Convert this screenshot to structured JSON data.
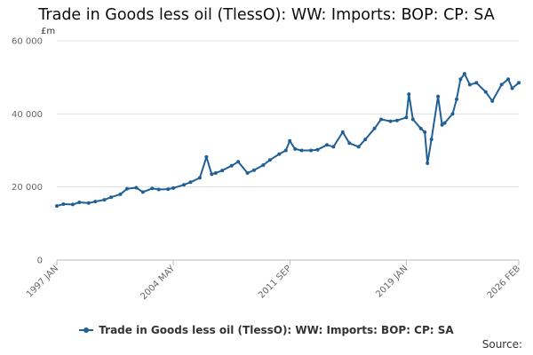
{
  "chart_data": {
    "type": "line",
    "title": "Trade in Goods less oil (TlessO): WW: Imports: BOP: CP: SA",
    "unit_label": "£m",
    "source_label": "Source:",
    "ylim": [
      0,
      60000
    ],
    "y_ticks": [
      0,
      20000,
      40000,
      60000
    ],
    "y_tick_labels": [
      "0",
      "20 000",
      "40 000",
      "60 000"
    ],
    "x_tick_labels": [
      "1997 JAN",
      "2004 MAY",
      "2011 SEP",
      "2019 JAN",
      "2026 FEB"
    ],
    "x_range": [
      "1997-01",
      "2026-02"
    ],
    "grid": true,
    "legend_position": "bottom",
    "colors": {
      "series": "#206095",
      "grid": "#e0e0e0",
      "axis": "#bbbbbb"
    },
    "series": [
      {
        "name": "Trade in Goods less oil (TlessO): WW: Imports: BOP: CP: SA",
        "points": [
          [
            "1997-01",
            14800
          ],
          [
            "1997-06",
            15300
          ],
          [
            "1998-01",
            15200
          ],
          [
            "1998-06",
            15800
          ],
          [
            "1999-01",
            15600
          ],
          [
            "1999-06",
            16000
          ],
          [
            "2000-01",
            16500
          ],
          [
            "2000-06",
            17200
          ],
          [
            "2001-01",
            18000
          ],
          [
            "2001-06",
            19500
          ],
          [
            "2002-01",
            19800
          ],
          [
            "2002-06",
            18600
          ],
          [
            "2003-01",
            19600
          ],
          [
            "2003-06",
            19300
          ],
          [
            "2004-01",
            19400
          ],
          [
            "2004-05",
            19700
          ],
          [
            "2005-01",
            20600
          ],
          [
            "2005-06",
            21300
          ],
          [
            "2006-01",
            22500
          ],
          [
            "2006-06",
            28200
          ],
          [
            "2006-10",
            23500
          ],
          [
            "2007-01",
            23800
          ],
          [
            "2007-06",
            24500
          ],
          [
            "2008-01",
            25800
          ],
          [
            "2008-06",
            26900
          ],
          [
            "2009-01",
            23800
          ],
          [
            "2009-06",
            24600
          ],
          [
            "2010-01",
            26000
          ],
          [
            "2010-06",
            27400
          ],
          [
            "2011-01",
            29000
          ],
          [
            "2011-06",
            30000
          ],
          [
            "2011-09",
            32600
          ],
          [
            "2012-01",
            30400
          ],
          [
            "2012-06",
            30000
          ],
          [
            "2013-01",
            30000
          ],
          [
            "2013-06",
            30200
          ],
          [
            "2014-01",
            31500
          ],
          [
            "2014-06",
            31000
          ],
          [
            "2015-01",
            35000
          ],
          [
            "2015-06",
            32000
          ],
          [
            "2016-01",
            31000
          ],
          [
            "2016-06",
            33000
          ],
          [
            "2017-01",
            36000
          ],
          [
            "2017-06",
            38500
          ],
          [
            "2018-01",
            38000
          ],
          [
            "2018-06",
            38200
          ],
          [
            "2019-01",
            39000
          ],
          [
            "2019-03",
            45400
          ],
          [
            "2019-06",
            38500
          ],
          [
            "2019-12",
            36000
          ],
          [
            "2020-03",
            35000
          ],
          [
            "2020-05",
            26500
          ],
          [
            "2020-08",
            33000
          ],
          [
            "2021-01",
            44800
          ],
          [
            "2021-04",
            37000
          ],
          [
            "2021-06",
            37500
          ],
          [
            "2021-12",
            40000
          ],
          [
            "2022-03",
            44000
          ],
          [
            "2022-06",
            49500
          ],
          [
            "2022-09",
            51000
          ],
          [
            "2023-01",
            48000
          ],
          [
            "2023-06",
            48500
          ],
          [
            "2024-01",
            46000
          ],
          [
            "2024-06",
            43500
          ],
          [
            "2025-01",
            48000
          ],
          [
            "2025-06",
            49500
          ],
          [
            "2025-09",
            47000
          ],
          [
            "2026-02",
            48500
          ]
        ]
      }
    ]
  }
}
